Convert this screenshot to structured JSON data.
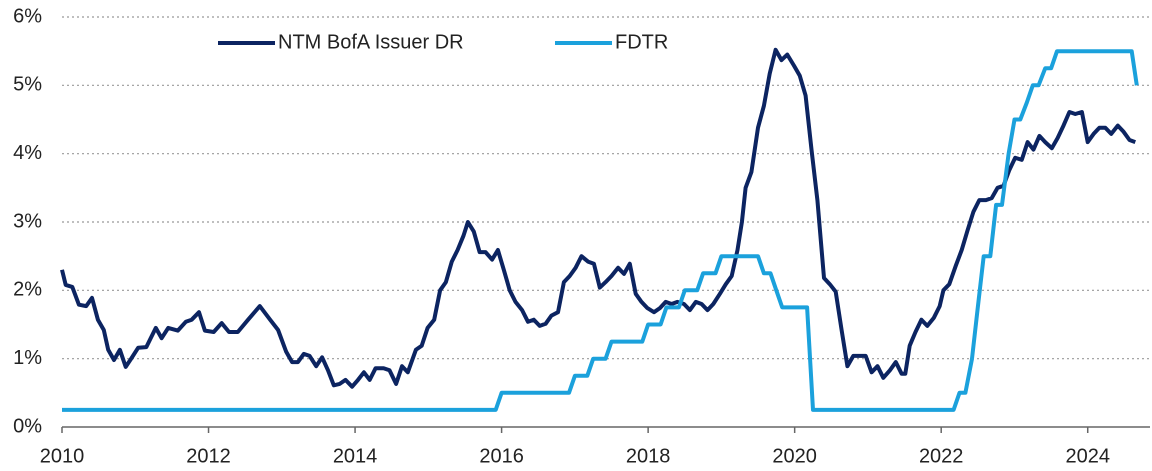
{
  "chart_data": {
    "type": "line",
    "xlim": [
      2010,
      2024.85
    ],
    "xticks": [
      2010,
      2012,
      2014,
      2016,
      2018,
      2020,
      2022,
      2024
    ],
    "ylim": [
      0,
      6
    ],
    "yticks": [
      {
        "value": 0,
        "label": "0%"
      },
      {
        "value": 1,
        "label": "1%"
      },
      {
        "value": 2,
        "label": "2%"
      },
      {
        "value": 3,
        "label": "3%"
      },
      {
        "value": 4,
        "label": "4%"
      },
      {
        "value": 5,
        "label": "5%"
      },
      {
        "value": 6,
        "label": "6%"
      }
    ],
    "grid": true,
    "legend": "top",
    "series": [
      {
        "name": "NTM BofA Issuer DR",
        "color": "#0c2461",
        "x": [
          2010.0,
          2010.05,
          2010.14,
          2010.23,
          2010.33,
          2010.41,
          2010.49,
          2010.57,
          2010.63,
          2010.71,
          2010.79,
          2010.87,
          2010.95,
          2011.04,
          2011.15,
          2011.28,
          2011.36,
          2011.45,
          2011.58,
          2011.69,
          2011.77,
          2011.87,
          2011.95,
          2012.07,
          2012.18,
          2012.28,
          2012.4,
          2012.54,
          2012.7,
          2012.84,
          2012.95,
          2013.06,
          2013.14,
          2013.22,
          2013.3,
          2013.38,
          2013.47,
          2013.55,
          2013.63,
          2013.71,
          2013.79,
          2013.87,
          2013.96,
          2014.04,
          2014.12,
          2014.2,
          2014.28,
          2014.39,
          2014.47,
          2014.56,
          2014.64,
          2014.72,
          2014.83,
          2014.91,
          2014.99,
          2015.08,
          2015.16,
          2015.24,
          2015.32,
          2015.4,
          2015.48,
          2015.54,
          2015.62,
          2015.7,
          2015.78,
          2015.87,
          2015.95,
          2016.03,
          2016.11,
          2016.19,
          2016.28,
          2016.36,
          2016.44,
          2016.52,
          2016.6,
          2016.68,
          2016.77,
          2016.85,
          2016.93,
          2017.01,
          2017.09,
          2017.18,
          2017.26,
          2017.34,
          2017.42,
          2017.5,
          2017.59,
          2017.67,
          2017.75,
          2017.83,
          2017.91,
          2017.99,
          2018.08,
          2018.16,
          2018.24,
          2018.32,
          2018.4,
          2018.49,
          2018.57,
          2018.65,
          2018.73,
          2018.81,
          2018.89,
          2018.98,
          2019.06,
          2019.14,
          2019.22,
          2019.28,
          2019.33,
          2019.41,
          2019.5,
          2019.58,
          2019.66,
          2019.74,
          2019.82,
          2019.9,
          2019.99,
          2020.07,
          2020.15,
          2020.23,
          2020.31,
          2020.4,
          2020.48,
          2020.56,
          2020.64,
          2020.72,
          2020.8,
          2020.89,
          2020.97,
          2021.05,
          2021.13,
          2021.21,
          2021.3,
          2021.38,
          2021.46,
          2021.51,
          2021.57,
          2021.65,
          2021.73,
          2021.81,
          2021.9,
          2021.98,
          2022.03,
          2022.11,
          2022.2,
          2022.28,
          2022.36,
          2022.44,
          2022.52,
          2022.61,
          2022.69,
          2022.77,
          2022.85,
          2022.93,
          2023.01,
          2023.1,
          2023.18,
          2023.26,
          2023.34,
          2023.42,
          2023.51,
          2023.59,
          2023.67,
          2023.75,
          2023.83,
          2023.92,
          2024.0,
          2024.08,
          2024.16,
          2024.24,
          2024.32,
          2024.41,
          2024.49,
          2024.57,
          2024.65
        ],
        "values": [
          2.3,
          2.08,
          2.05,
          1.79,
          1.77,
          1.89,
          1.57,
          1.42,
          1.13,
          0.98,
          1.13,
          0.88,
          1.01,
          1.16,
          1.17,
          1.45,
          1.3,
          1.45,
          1.41,
          1.54,
          1.57,
          1.68,
          1.41,
          1.39,
          1.52,
          1.39,
          1.39,
          1.57,
          1.77,
          1.57,
          1.42,
          1.1,
          0.95,
          0.95,
          1.07,
          1.04,
          0.89,
          1.02,
          0.83,
          0.61,
          0.63,
          0.69,
          0.59,
          0.69,
          0.8,
          0.69,
          0.86,
          0.86,
          0.83,
          0.63,
          0.89,
          0.8,
          1.13,
          1.19,
          1.45,
          1.57,
          2.0,
          2.12,
          2.42,
          2.59,
          2.8,
          3.0,
          2.86,
          2.56,
          2.56,
          2.45,
          2.59,
          2.3,
          2.0,
          1.83,
          1.71,
          1.54,
          1.57,
          1.48,
          1.51,
          1.63,
          1.68,
          2.12,
          2.21,
          2.33,
          2.5,
          2.42,
          2.39,
          2.04,
          2.12,
          2.21,
          2.33,
          2.24,
          2.39,
          1.95,
          1.83,
          1.74,
          1.68,
          1.74,
          1.83,
          1.8,
          1.83,
          1.8,
          1.71,
          1.83,
          1.8,
          1.71,
          1.8,
          1.95,
          2.09,
          2.21,
          2.59,
          3.0,
          3.5,
          3.73,
          4.38,
          4.7,
          5.17,
          5.52,
          5.37,
          5.45,
          5.29,
          5.14,
          4.85,
          4.06,
          3.32,
          2.18,
          2.09,
          1.98,
          1.42,
          0.89,
          1.04,
          1.04,
          1.04,
          0.8,
          0.89,
          0.72,
          0.83,
          0.95,
          0.78,
          0.78,
          1.19,
          1.39,
          1.57,
          1.48,
          1.6,
          1.77,
          2.0,
          2.09,
          2.36,
          2.59,
          2.88,
          3.15,
          3.32,
          3.32,
          3.35,
          3.5,
          3.53,
          3.76,
          3.94,
          3.91,
          4.17,
          4.06,
          4.26,
          4.17,
          4.08,
          4.23,
          4.41,
          4.61,
          4.58,
          4.61,
          4.17,
          4.29,
          4.38,
          4.38,
          4.29,
          4.41,
          4.32,
          4.2,
          4.17
        ]
      },
      {
        "name": "FDTR",
        "color": "#1ba1dc",
        "x": [
          2010,
          2015.92,
          2016.0,
          2016.92,
          2017.0,
          2017.17,
          2017.25,
          2017.42,
          2017.5,
          2017.92,
          2018.0,
          2018.17,
          2018.25,
          2018.42,
          2018.5,
          2018.67,
          2018.75,
          2018.92,
          2019.0,
          2019.5,
          2019.58,
          2019.67,
          2019.75,
          2019.83,
          2020.17,
          2020.25,
          2022.17,
          2022.25,
          2022.33,
          2022.42,
          2022.5,
          2022.58,
          2022.67,
          2022.75,
          2022.83,
          2022.92,
          2023.0,
          2023.08,
          2023.17,
          2023.25,
          2023.33,
          2023.42,
          2023.5,
          2023.58,
          2024.6,
          2024.67
        ],
        "values": [
          0.25,
          0.25,
          0.5,
          0.5,
          0.75,
          0.75,
          1.0,
          1.0,
          1.25,
          1.25,
          1.5,
          1.5,
          1.75,
          1.75,
          2.0,
          2.0,
          2.25,
          2.25,
          2.5,
          2.5,
          2.25,
          2.25,
          2.0,
          1.75,
          1.75,
          0.25,
          0.25,
          0.5,
          0.5,
          1.0,
          1.75,
          2.5,
          2.5,
          3.25,
          3.25,
          4.0,
          4.5,
          4.5,
          4.75,
          5.0,
          5.0,
          5.25,
          5.25,
          5.5,
          5.5,
          5.0
        ]
      }
    ]
  }
}
